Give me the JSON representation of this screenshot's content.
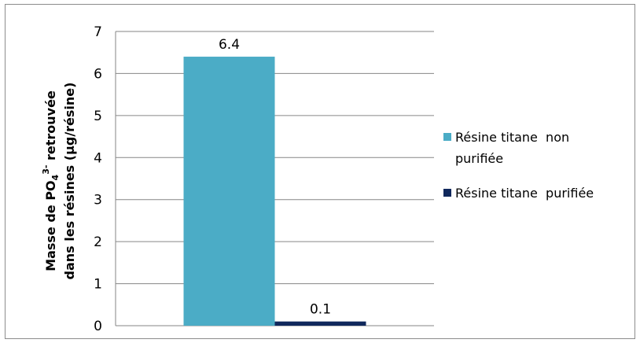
{
  "chart_data": {
    "type": "bar",
    "categories": [
      ""
    ],
    "series": [
      {
        "name": "Résine titane  non purifiée",
        "values": [
          6.4
        ],
        "color": "#4bacc6"
      },
      {
        "name": "Résine titane  purifiée",
        "values": [
          0.1
        ],
        "color": "#10285c"
      }
    ],
    "data_labels": [
      "6.4",
      "0.1"
    ],
    "ylabel": {
      "line1_main": "Masse de PO",
      "line1_sub": "4",
      "line1_sup": "3-",
      "line1_rest": " retrouvée",
      "line2": "dans les résines (µg/résine)"
    },
    "ylim": [
      0,
      7
    ],
    "yticks": [
      "0",
      "1",
      "2",
      "3",
      "4",
      "5",
      "6",
      "7"
    ],
    "grid": true,
    "legend": {
      "position": "right"
    }
  }
}
